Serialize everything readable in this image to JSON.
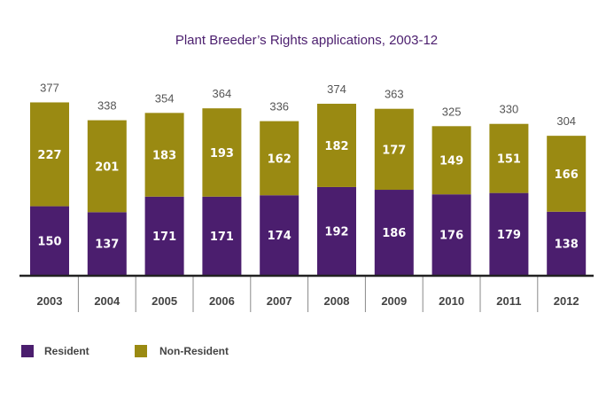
{
  "chart_data": {
    "type": "bar",
    "stacked": true,
    "title": "Plant Breeder’s Rights applications, 2003-12",
    "xlabel": "",
    "ylabel": "",
    "categories": [
      "2003",
      "2004",
      "2005",
      "2006",
      "2007",
      "2008",
      "2009",
      "2010",
      "2011",
      "2012"
    ],
    "series": [
      {
        "name": "Resident",
        "color": "#4b1e6e",
        "values": [
          150,
          137,
          171,
          171,
          174,
          192,
          186,
          176,
          179,
          138
        ]
      },
      {
        "name": "Non-Resident",
        "color": "#9a8a12",
        "values": [
          227,
          201,
          183,
          193,
          162,
          182,
          177,
          149,
          151,
          166
        ]
      }
    ],
    "totals": [
      377,
      338,
      354,
      364,
      336,
      374,
      363,
      325,
      330,
      304
    ],
    "ylim": [
      0,
      400
    ],
    "grid": false,
    "legend": "bottom-left"
  }
}
